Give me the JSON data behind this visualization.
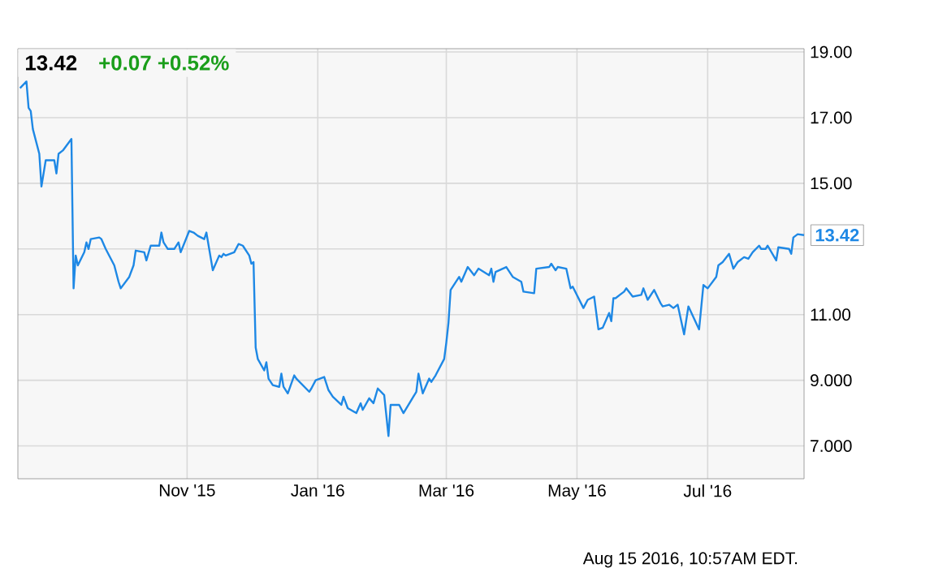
{
  "chart_data": {
    "type": "line",
    "title": "13.42",
    "subtitle": "+0.07  +0.52%",
    "xlim": [
      "2015-08-14",
      "2016-08-15"
    ],
    "xticks": [
      {
        "value": "2015-11-01",
        "label": "Nov '15"
      },
      {
        "value": "2016-01-01",
        "label": "Jan '16"
      },
      {
        "value": "2016-03-01",
        "label": "Mar '16"
      },
      {
        "value": "2016-05-01",
        "label": "May '16"
      },
      {
        "value": "2016-07-01",
        "label": "Jul '16"
      }
    ],
    "ylim": [
      6,
      19.1
    ],
    "yticks": [
      {
        "value": 7,
        "label": "7.000"
      },
      {
        "value": 9,
        "label": "9.000"
      },
      {
        "value": 11,
        "label": "11.00"
      },
      {
        "value": 13,
        "label": null
      },
      {
        "value": 15,
        "label": "15.00"
      },
      {
        "value": 17,
        "label": "17.00"
      },
      {
        "value": 19,
        "label": "19.00"
      }
    ],
    "grid": true,
    "annotations": [
      {
        "text": "13.42",
        "x": "2016-08-15",
        "y": 13.42
      },
      "Aug 15 2016, 10:57AM EDT."
    ],
    "series": [
      {
        "color": "#1e88e5",
        "x": [
          "2015-08-15",
          "2015-08-18",
          "2015-08-19",
          "2015-08-20",
          "2015-08-21",
          "2015-08-24",
          "2015-08-25",
          "2015-08-27",
          "2015-08-31",
          "2015-09-01",
          "2015-09-02",
          "2015-09-04",
          "2015-09-08",
          "2015-09-09",
          "2015-09-10",
          "2015-09-11",
          "2015-09-14",
          "2015-09-15",
          "2015-09-16",
          "2015-09-17",
          "2015-09-21",
          "2015-09-22",
          "2015-09-24",
          "2015-09-28",
          "2015-09-30",
          "2015-10-01",
          "2015-10-05",
          "2015-10-07",
          "2015-10-08",
          "2015-10-12",
          "2015-10-13",
          "2015-10-15",
          "2015-10-19",
          "2015-10-20",
          "2015-10-21",
          "2015-10-23",
          "2015-10-26",
          "2015-10-28",
          "2015-10-29",
          "2015-11-02",
          "2015-11-04",
          "2015-11-06",
          "2015-11-09",
          "2015-11-10",
          "2015-11-13",
          "2015-11-16",
          "2015-11-17",
          "2015-11-18",
          "2015-11-19",
          "2015-11-23",
          "2015-11-25",
          "2015-11-27",
          "2015-11-30",
          "2015-12-01",
          "2015-12-02",
          "2015-12-03",
          "2015-12-04",
          "2015-12-07",
          "2015-12-08",
          "2015-12-09",
          "2015-12-11",
          "2015-12-14",
          "2015-12-15",
          "2015-12-16",
          "2015-12-18",
          "2015-12-21",
          "2015-12-22",
          "2015-12-28",
          "2015-12-29",
          "2015-12-31",
          "2016-01-04",
          "2016-01-06",
          "2016-01-08",
          "2016-01-12",
          "2016-01-13",
          "2016-01-15",
          "2016-01-19",
          "2016-01-21",
          "2016-01-22",
          "2016-01-25",
          "2016-01-27",
          "2016-01-29",
          "2016-02-01",
          "2016-02-03",
          "2016-02-04",
          "2016-02-08",
          "2016-02-10",
          "2016-02-16",
          "2016-02-17",
          "2016-02-19",
          "2016-02-22",
          "2016-02-23",
          "2016-02-25",
          "2016-02-29",
          "2016-03-01",
          "2016-03-02",
          "2016-03-03",
          "2016-03-07",
          "2016-03-08",
          "2016-03-11",
          "2016-03-14",
          "2016-03-16",
          "2016-03-21",
          "2016-03-22",
          "2016-03-23",
          "2016-03-24",
          "2016-03-29",
          "2016-04-01",
          "2016-04-05",
          "2016-04-06",
          "2016-04-11",
          "2016-04-12",
          "2016-04-18",
          "2016-04-19",
          "2016-04-21",
          "2016-04-22",
          "2016-04-26",
          "2016-04-28",
          "2016-04-29",
          "2016-05-04",
          "2016-05-06",
          "2016-05-09",
          "2016-05-11",
          "2016-05-13",
          "2016-05-16",
          "2016-05-17",
          "2016-05-18",
          "2016-05-19",
          "2016-05-23",
          "2016-05-24",
          "2016-05-27",
          "2016-05-31",
          "2016-06-01",
          "2016-06-03",
          "2016-06-06",
          "2016-06-09",
          "2016-06-10",
          "2016-06-13",
          "2016-06-15",
          "2016-06-17",
          "2016-06-20",
          "2016-06-22",
          "2016-06-27",
          "2016-06-29",
          "2016-07-01",
          "2016-07-05",
          "2016-07-06",
          "2016-07-08",
          "2016-07-11",
          "2016-07-13",
          "2016-07-15",
          "2016-07-18",
          "2016-07-20",
          "2016-07-22",
          "2016-07-25",
          "2016-07-26",
          "2016-07-28",
          "2016-07-29",
          "2016-08-02",
          "2016-08-03",
          "2016-08-08",
          "2016-08-09",
          "2016-08-10",
          "2016-08-12",
          "2016-08-15"
        ],
        "values": [
          17.9,
          18.1,
          17.3,
          17.2,
          16.65,
          15.9,
          14.9,
          15.7,
          15.7,
          15.3,
          15.9,
          16.0,
          16.35,
          11.8,
          12.8,
          12.5,
          12.9,
          13.2,
          13.0,
          13.3,
          13.35,
          13.3,
          13.0,
          12.5,
          12.0,
          11.8,
          12.15,
          12.5,
          12.95,
          12.9,
          12.65,
          13.1,
          13.1,
          13.5,
          13.2,
          13.0,
          13.0,
          13.2,
          12.9,
          13.55,
          13.5,
          13.4,
          13.3,
          13.5,
          12.35,
          12.8,
          12.75,
          12.85,
          12.8,
          12.9,
          13.15,
          13.1,
          12.8,
          12.55,
          12.6,
          10.0,
          9.65,
          9.3,
          9.55,
          9.05,
          8.85,
          8.8,
          9.2,
          8.8,
          8.6,
          9.15,
          9.05,
          8.65,
          8.75,
          9.0,
          9.1,
          8.7,
          8.5,
          8.25,
          8.5,
          8.15,
          8.0,
          8.3,
          8.1,
          8.45,
          8.3,
          8.75,
          8.55,
          7.3,
          8.25,
          8.25,
          8.0,
          8.65,
          9.2,
          8.6,
          9.05,
          8.95,
          9.15,
          9.65,
          10.15,
          10.75,
          11.75,
          12.15,
          12.0,
          12.45,
          12.2,
          12.4,
          12.2,
          12.4,
          12.0,
          12.3,
          12.45,
          12.15,
          12.0,
          11.7,
          11.65,
          12.4,
          12.45,
          12.55,
          12.35,
          12.45,
          12.4,
          11.8,
          11.85,
          11.2,
          11.45,
          11.55,
          10.55,
          10.6,
          11.05,
          10.8,
          11.5,
          11.5,
          11.7,
          11.8,
          11.55,
          11.6,
          11.8,
          11.45,
          11.75,
          11.35,
          11.25,
          11.3,
          11.2,
          11.3,
          10.4,
          11.25,
          10.55,
          11.9,
          11.8,
          12.15,
          12.5,
          12.6,
          12.85,
          12.4,
          12.6,
          12.75,
          12.7,
          12.9,
          13.1,
          13.0,
          13.0,
          13.1,
          12.65,
          13.05,
          13.0,
          12.85,
          13.35,
          13.45,
          13.42
        ]
      }
    ]
  }
}
